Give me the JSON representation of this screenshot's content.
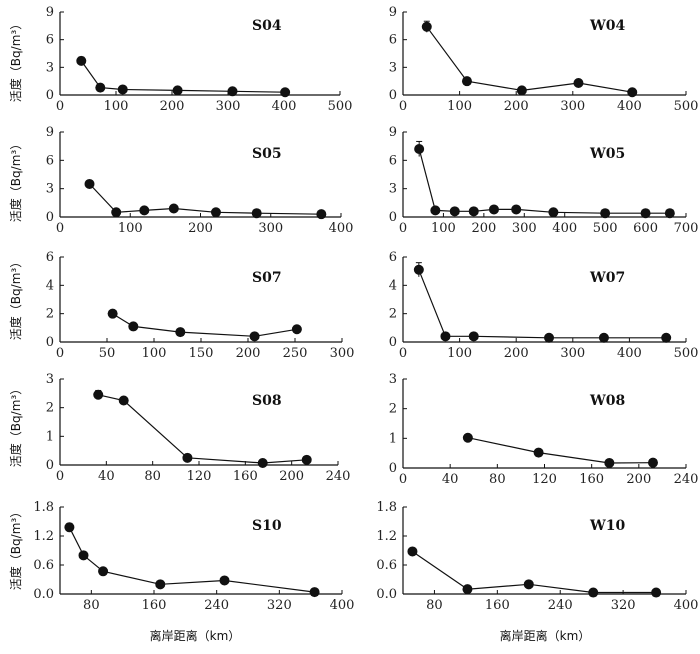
{
  "figure": {
    "ylabel": "活度（Bq/m³）",
    "xlabel": "离岸距离（km）"
  },
  "chart_data": [
    {
      "type": "line",
      "label": "S04",
      "xlim": [
        0,
        500
      ],
      "xticks": [
        0,
        100,
        200,
        300,
        400,
        500
      ],
      "ylim": [
        0,
        9
      ],
      "yticks": [
        0,
        3,
        6,
        9
      ],
      "x": [
        38,
        72,
        112,
        210,
        308,
        402
      ],
      "y": [
        3.7,
        0.8,
        0.6,
        0.5,
        0.4,
        0.3
      ],
      "err": [
        0.4,
        0.1,
        0.1,
        0.1,
        0.1,
        0.1
      ]
    },
    {
      "type": "line",
      "label": "W04",
      "xlim": [
        0,
        500
      ],
      "xticks": [
        0,
        100,
        200,
        300,
        400,
        500
      ],
      "ylim": [
        0,
        9
      ],
      "yticks": [
        0,
        3,
        6,
        9
      ],
      "x": [
        42,
        113,
        210,
        310,
        405
      ],
      "y": [
        7.4,
        1.5,
        0.5,
        1.3,
        0.3
      ],
      "err": [
        0.6,
        0.2,
        0.1,
        0.2,
        0.1
      ]
    },
    {
      "type": "line",
      "label": "S05",
      "xlim": [
        0,
        400
      ],
      "xticks": [
        0,
        100,
        200,
        300,
        400
      ],
      "ylim": [
        0,
        9
      ],
      "yticks": [
        0,
        3,
        6,
        9
      ],
      "x": [
        42,
        80,
        120,
        162,
        222,
        280,
        372
      ],
      "y": [
        3.5,
        0.5,
        0.7,
        0.9,
        0.5,
        0.4,
        0.3
      ],
      "err": [
        0.3,
        0.1,
        0.1,
        0.1,
        0.1,
        0.1,
        0.1
      ]
    },
    {
      "type": "line",
      "label": "W05",
      "xlim": [
        0,
        700
      ],
      "xticks": [
        0,
        100,
        200,
        300,
        400,
        500,
        600,
        700
      ],
      "ylim": [
        0,
        9
      ],
      "yticks": [
        0,
        3,
        6,
        9
      ],
      "x": [
        40,
        80,
        128,
        175,
        225,
        280,
        372,
        500,
        600,
        660
      ],
      "y": [
        7.2,
        0.7,
        0.6,
        0.6,
        0.8,
        0.8,
        0.5,
        0.4,
        0.4,
        0.4
      ],
      "err": [
        0.8,
        0.1,
        0.1,
        0.1,
        0.1,
        0.1,
        0.1,
        0.1,
        0.1,
        0.1
      ]
    },
    {
      "type": "line",
      "label": "S07",
      "xlim": [
        0,
        300
      ],
      "xticks": [
        0,
        50,
        100,
        150,
        200,
        250,
        300
      ],
      "ylim": [
        0,
        6
      ],
      "yticks": [
        0,
        2,
        4,
        6
      ],
      "x": [
        56,
        78,
        128,
        207,
        252
      ],
      "y": [
        2.0,
        1.1,
        0.7,
        0.4,
        0.9
      ],
      "err": [
        0.1,
        0.1,
        0.1,
        0.1,
        0.1
      ]
    },
    {
      "type": "line",
      "label": "W07",
      "xlim": [
        0,
        500
      ],
      "xticks": [
        0,
        100,
        200,
        300,
        400,
        500
      ],
      "ylim": [
        0,
        6
      ],
      "yticks": [
        0,
        2,
        4,
        6
      ],
      "x": [
        28,
        75,
        125,
        258,
        355,
        465
      ],
      "y": [
        5.1,
        0.4,
        0.4,
        0.3,
        0.3,
        0.3
      ],
      "err": [
        0.5,
        0.1,
        0.1,
        0.1,
        0.1,
        0.1
      ]
    },
    {
      "type": "line",
      "label": "S08",
      "xlim": [
        0,
        240
      ],
      "xticks": [
        0,
        40,
        80,
        120,
        160,
        200,
        240
      ],
      "ylim": [
        0,
        3
      ],
      "yticks": [
        0,
        1,
        2,
        3
      ],
      "x": [
        33,
        55,
        110,
        175,
        213
      ],
      "y": [
        2.45,
        2.25,
        0.25,
        0.07,
        0.18
      ],
      "err": [
        0.15,
        0.1,
        0.05,
        0.03,
        0.03
      ]
    },
    {
      "type": "line",
      "label": "W08",
      "xlim": [
        0,
        240
      ],
      "xticks": [
        0,
        40,
        80,
        120,
        160,
        200,
        240
      ],
      "ylim": [
        0,
        3
      ],
      "yticks": [
        0,
        1,
        2,
        3
      ],
      "x": [
        55,
        115,
        175,
        212
      ],
      "y": [
        1.02,
        0.52,
        0.17,
        0.18
      ],
      "err": [
        0.05,
        0.04,
        0.03,
        0.03
      ]
    },
    {
      "type": "line",
      "label": "S10",
      "xlim": [
        40,
        400
      ],
      "xticks": [
        80,
        160,
        240,
        320,
        400
      ],
      "ylim": [
        0,
        1.8
      ],
      "yticks": [
        0.0,
        0.6,
        1.2,
        1.8
      ],
      "x": [
        52,
        70,
        95,
        168,
        250,
        365
      ],
      "y": [
        1.38,
        0.8,
        0.47,
        0.2,
        0.28,
        0.04
      ],
      "err": [
        0.08,
        0.06,
        0.04,
        0.03,
        0.03,
        0.02
      ]
    },
    {
      "type": "line",
      "label": "W10",
      "xlim": [
        40,
        400
      ],
      "xticks": [
        80,
        160,
        240,
        320,
        400
      ],
      "ylim": [
        0,
        1.8
      ],
      "yticks": [
        0.0,
        0.6,
        1.2,
        1.8
      ],
      "x": [
        52,
        122,
        200,
        282,
        362
      ],
      "y": [
        0.88,
        0.1,
        0.2,
        0.03,
        0.03
      ],
      "err": [
        0.07,
        0.03,
        0.03,
        0.02,
        0.02
      ]
    }
  ]
}
